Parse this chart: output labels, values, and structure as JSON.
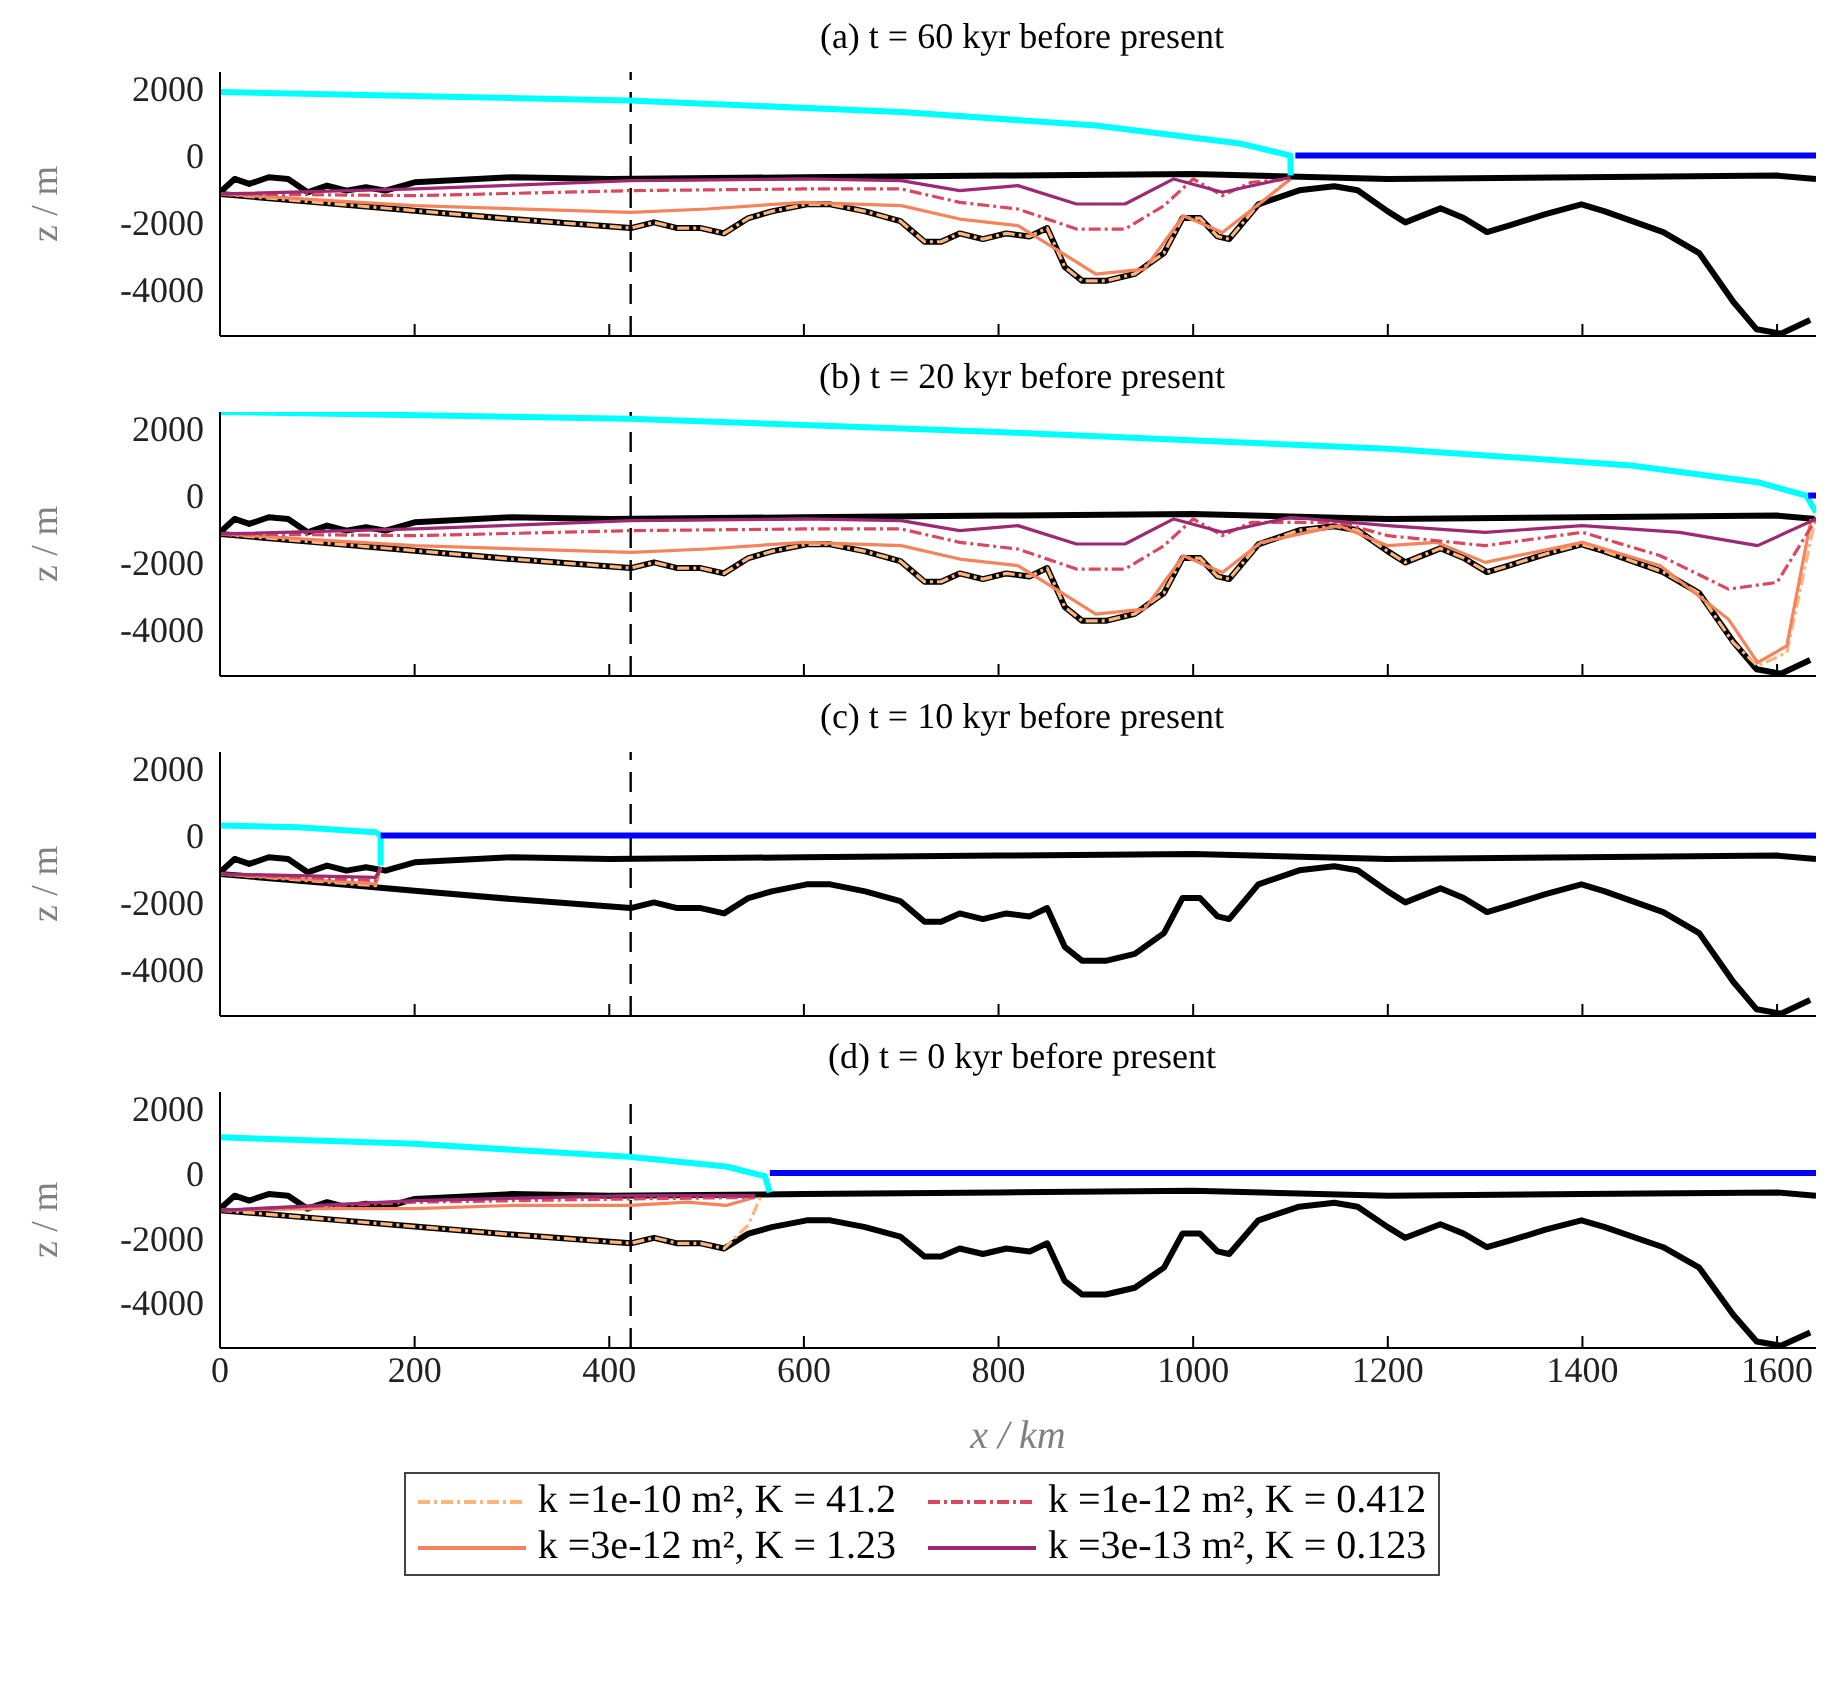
{
  "chart_data": [
    {
      "type": "line",
      "title": "(a) t = 60 kyr before present",
      "ylabel": "z / m",
      "xlim": [
        0,
        1640
      ],
      "xticks": [
        0,
        200,
        400,
        600,
        800,
        1000,
        1200,
        1400,
        1600
      ],
      "ylim": [
        -5400,
        2500
      ],
      "yticks": [
        2000,
        0,
        -2000,
        -4000
      ],
      "tick_labels": "y",
      "ref_lines": [
        {
          "axis": "x",
          "value": 422,
          "color": "#000000",
          "line_style": "dashed"
        }
      ],
      "series": [
        {
          "color": "#fdb57a",
          "line_style": "dashed",
          "x": [
            0,
            100,
            200,
            300,
            422,
            446,
            470,
            494,
            518,
            543,
            567,
            603,
            627,
            663,
            699,
            724,
            741,
            760,
            784,
            808,
            832,
            850,
            868,
            886,
            910,
            940,
            970,
            989,
            1007,
            1025,
            1037,
            1067,
            1100
          ],
          "values": [
            -1150,
            -1400,
            -1650,
            -1900,
            -2170,
            -2000,
            -2170,
            -2170,
            -2330,
            -1870,
            -1670,
            -1460,
            -1460,
            -1670,
            -1960,
            -2580,
            -2580,
            -2330,
            -2500,
            -2330,
            -2420,
            -2170,
            -3330,
            -3750,
            -3750,
            -3540,
            -2920,
            -1870,
            -1870,
            -2420,
            -2500,
            -1460,
            -700
          ]
        },
        {
          "color": "#f4845c",
          "line_style": "solid",
          "x": [
            0,
            200,
            422,
            500,
            600,
            700,
            760,
            820,
            870,
            900,
            950,
            990,
            1030,
            1070,
            1100
          ],
          "values": [
            -1150,
            -1500,
            -1700,
            -1600,
            -1400,
            -1500,
            -1900,
            -2100,
            -3000,
            -3550,
            -3400,
            -1800,
            -2300,
            -1400,
            -700
          ]
        },
        {
          "color": "#d9485f",
          "line_style": "dashed",
          "x": [
            0,
            200,
            422,
            600,
            700,
            760,
            820,
            880,
            930,
            970,
            1000,
            1030,
            1060,
            1100
          ],
          "values": [
            -1150,
            -1200,
            -1050,
            -1000,
            -1000,
            -1400,
            -1600,
            -2200,
            -2200,
            -1500,
            -700,
            -1200,
            -800,
            -700
          ]
        },
        {
          "color": "#9c2a72",
          "line_style": "solid",
          "x": [
            0,
            200,
            422,
            600,
            700,
            760,
            820,
            880,
            930,
            980,
            1030,
            1100
          ],
          "values": [
            -1150,
            -1000,
            -750,
            -700,
            -750,
            -1050,
            -900,
            -1450,
            -1450,
            -700,
            -1100,
            -650
          ]
        },
        {
          "color": "#000000",
          "line_style": "solid",
          "x": [
            0,
            15,
            30,
            50,
            70,
            90,
            110,
            130,
            150,
            170,
            200,
            300,
            400,
            600,
            800,
            1000,
            1200,
            1400,
            1600,
            1640
          ],
          "values": [
            -1100,
            -700,
            -850,
            -650,
            -700,
            -1100,
            -900,
            -1050,
            -950,
            -1050,
            -800,
            -650,
            -700,
            -650,
            -600,
            -550,
            -700,
            -650,
            -600,
            -700
          ]
        },
        {
          "color": "#000000",
          "line_style": "solid",
          "x": [
            0,
            100,
            200,
            300,
            422,
            446,
            470,
            494,
            518,
            543,
            567,
            603,
            627,
            663,
            699,
            724,
            741,
            760,
            784,
            808,
            832,
            850,
            868,
            886,
            910,
            940,
            970,
            989,
            1007,
            1025,
            1037,
            1067,
            1109,
            1145,
            1169,
            1200,
            1218,
            1254,
            1278,
            1302,
            1326,
            1362,
            1399,
            1423,
            1483,
            1520,
            1555,
            1579,
            1604,
            1634
          ],
          "values": [
            -1150,
            -1400,
            -1650,
            -1900,
            -2170,
            -2000,
            -2170,
            -2170,
            -2330,
            -1870,
            -1670,
            -1460,
            -1460,
            -1670,
            -1960,
            -2580,
            -2580,
            -2330,
            -2500,
            -2330,
            -2420,
            -2170,
            -3330,
            -3750,
            -3750,
            -3540,
            -2920,
            -1870,
            -1870,
            -2420,
            -2500,
            -1460,
            -1040,
            -920,
            -1040,
            -1670,
            -2000,
            -1580,
            -1870,
            -2290,
            -2080,
            -1750,
            -1460,
            -1670,
            -2290,
            -2920,
            -4375,
            -5200,
            -5330,
            -4920
          ]
        },
        {
          "color": "#00ffff",
          "line_style": "solid",
          "x": [
            0,
            420,
            700,
            900,
            1050,
            1100,
            1100
          ],
          "values": [
            1900,
            1650,
            1300,
            900,
            350,
            0,
            -600
          ]
        },
        {
          "color": "#0000ff",
          "line_style": "solid",
          "x": [
            1105,
            1640
          ],
          "values": [
            0,
            0
          ]
        }
      ]
    },
    {
      "type": "line",
      "title": "(b) t = 20 kyr before present",
      "ylabel": "z / m",
      "xlim": [
        0,
        1640
      ],
      "xticks": [
        0,
        200,
        400,
        600,
        800,
        1000,
        1200,
        1400,
        1600
      ],
      "ylim": [
        -5400,
        2500
      ],
      "yticks": [
        2000,
        0,
        -2000,
        -4000
      ],
      "tick_labels": "y",
      "ref_lines": [
        {
          "axis": "x",
          "value": 422,
          "color": "#000000",
          "line_style": "dashed"
        }
      ],
      "series": [
        {
          "color": "#fdb57a",
          "line_style": "dashed",
          "x": [
            0,
            100,
            200,
            300,
            422,
            446,
            470,
            494,
            518,
            543,
            567,
            603,
            627,
            663,
            699,
            724,
            741,
            760,
            784,
            808,
            832,
            850,
            868,
            886,
            910,
            940,
            970,
            989,
            1007,
            1025,
            1037,
            1067,
            1109,
            1145,
            1169,
            1200,
            1218,
            1254,
            1278,
            1302,
            1326,
            1362,
            1399,
            1423,
            1483,
            1520,
            1555,
            1580,
            1610,
            1640
          ],
          "values": [
            -1150,
            -1400,
            -1650,
            -1900,
            -2170,
            -2000,
            -2170,
            -2170,
            -2330,
            -1870,
            -1670,
            -1460,
            -1460,
            -1670,
            -1960,
            -2580,
            -2580,
            -2330,
            -2500,
            -2330,
            -2420,
            -2170,
            -3330,
            -3750,
            -3750,
            -3540,
            -2920,
            -1870,
            -1870,
            -2420,
            -2500,
            -1460,
            -1040,
            -920,
            -1040,
            -1670,
            -2000,
            -1580,
            -1870,
            -2290,
            -2080,
            -1750,
            -1460,
            -1670,
            -2290,
            -2920,
            -4400,
            -5100,
            -4700,
            -600
          ]
        },
        {
          "color": "#f4845c",
          "line_style": "solid",
          "x": [
            0,
            200,
            422,
            500,
            600,
            700,
            760,
            820,
            870,
            900,
            950,
            990,
            1030,
            1070,
            1150,
            1200,
            1250,
            1300,
            1400,
            1480,
            1550,
            1580,
            1610,
            1635
          ],
          "values": [
            -1150,
            -1500,
            -1700,
            -1600,
            -1400,
            -1500,
            -1900,
            -2100,
            -3000,
            -3550,
            -3400,
            -1800,
            -2300,
            -1400,
            -900,
            -1500,
            -1400,
            -2000,
            -1400,
            -2100,
            -3700,
            -5000,
            -4500,
            -700
          ]
        },
        {
          "color": "#d9485f",
          "line_style": "dashed",
          "x": [
            0,
            200,
            422,
            600,
            700,
            760,
            820,
            880,
            930,
            970,
            1000,
            1030,
            1060,
            1150,
            1200,
            1300,
            1400,
            1480,
            1550,
            1600,
            1640
          ],
          "values": [
            -1150,
            -1200,
            -1050,
            -1000,
            -1000,
            -1400,
            -1600,
            -2200,
            -2200,
            -1500,
            -700,
            -1200,
            -800,
            -800,
            -1200,
            -1500,
            -1100,
            -1800,
            -2800,
            -2600,
            -700
          ]
        },
        {
          "color": "#9c2a72",
          "line_style": "solid",
          "x": [
            0,
            200,
            422,
            600,
            700,
            760,
            820,
            880,
            930,
            980,
            1030,
            1100,
            1200,
            1300,
            1400,
            1500,
            1580,
            1640
          ],
          "values": [
            -1150,
            -1000,
            -750,
            -700,
            -750,
            -1050,
            -900,
            -1450,
            -1450,
            -700,
            -1100,
            -650,
            -900,
            -1100,
            -900,
            -1100,
            -1500,
            -700
          ]
        },
        {
          "color": "#000000",
          "line_style": "solid",
          "x": [
            0,
            15,
            30,
            50,
            70,
            90,
            110,
            130,
            150,
            170,
            200,
            300,
            400,
            600,
            800,
            1000,
            1200,
            1400,
            1600,
            1640
          ],
          "values": [
            -1100,
            -700,
            -850,
            -650,
            -700,
            -1100,
            -900,
            -1050,
            -950,
            -1050,
            -800,
            -650,
            -700,
            -650,
            -600,
            -550,
            -700,
            -650,
            -600,
            -700
          ]
        },
        {
          "color": "#000000",
          "line_style": "solid",
          "x": [
            0,
            100,
            200,
            300,
            422,
            446,
            470,
            494,
            518,
            543,
            567,
            603,
            627,
            663,
            699,
            724,
            741,
            760,
            784,
            808,
            832,
            850,
            868,
            886,
            910,
            940,
            970,
            989,
            1007,
            1025,
            1037,
            1067,
            1109,
            1145,
            1169,
            1200,
            1218,
            1254,
            1278,
            1302,
            1326,
            1362,
            1399,
            1423,
            1483,
            1520,
            1555,
            1579,
            1604,
            1634
          ],
          "values": [
            -1150,
            -1400,
            -1650,
            -1900,
            -2170,
            -2000,
            -2170,
            -2170,
            -2330,
            -1870,
            -1670,
            -1460,
            -1460,
            -1670,
            -1960,
            -2580,
            -2580,
            -2330,
            -2500,
            -2330,
            -2420,
            -2170,
            -3330,
            -3750,
            -3750,
            -3540,
            -2920,
            -1870,
            -1870,
            -2420,
            -2500,
            -1460,
            -1040,
            -920,
            -1040,
            -1670,
            -2000,
            -1580,
            -1870,
            -2290,
            -2080,
            -1750,
            -1460,
            -1670,
            -2290,
            -2920,
            -4375,
            -5200,
            -5330,
            -4920
          ]
        },
        {
          "color": "#00ffff",
          "line_style": "solid",
          "x": [
            0,
            420,
            800,
            1200,
            1450,
            1580,
            1630,
            1640
          ],
          "values": [
            2500,
            2300,
            1900,
            1400,
            900,
            400,
            0,
            -500
          ]
        },
        {
          "color": "#0000ff",
          "line_style": "solid",
          "x": [
            1632,
            1640
          ],
          "values": [
            0,
            0
          ]
        }
      ]
    },
    {
      "type": "line",
      "title": "(c) t = 10 kyr before present",
      "ylabel": "z / m",
      "xlim": [
        0,
        1640
      ],
      "xticks": [
        0,
        200,
        400,
        600,
        800,
        1000,
        1200,
        1400,
        1600
      ],
      "ylim": [
        -5400,
        2500
      ],
      "yticks": [
        2000,
        0,
        -2000,
        -4000
      ],
      "tick_labels": "y",
      "ref_lines": [
        {
          "axis": "x",
          "value": 422,
          "color": "#000000",
          "line_style": "dashed"
        }
      ],
      "series": [
        {
          "color": "#fdb57a",
          "line_style": "dashed",
          "x": [
            0,
            160,
            165
          ],
          "values": [
            -1150,
            -1500,
            -950
          ]
        },
        {
          "color": "#f4845c",
          "line_style": "solid",
          "x": [
            0,
            160,
            165
          ],
          "values": [
            -1150,
            -1450,
            -950
          ]
        },
        {
          "color": "#d9485f",
          "line_style": "dashed",
          "x": [
            0,
            160,
            165
          ],
          "values": [
            -1150,
            -1350,
            -950
          ]
        },
        {
          "color": "#9c2a72",
          "line_style": "solid",
          "x": [
            0,
            160,
            165
          ],
          "values": [
            -1150,
            -1250,
            -950
          ]
        },
        {
          "color": "#000000",
          "line_style": "solid",
          "x": [
            0,
            15,
            30,
            50,
            70,
            90,
            110,
            130,
            150,
            170,
            200,
            300,
            400,
            600,
            800,
            1000,
            1200,
            1400,
            1600,
            1640
          ],
          "values": [
            -1100,
            -700,
            -850,
            -650,
            -700,
            -1100,
            -900,
            -1050,
            -950,
            -1050,
            -800,
            -650,
            -700,
            -650,
            -600,
            -550,
            -700,
            -650,
            -600,
            -700
          ]
        },
        {
          "color": "#000000",
          "line_style": "solid",
          "x": [
            0,
            100,
            200,
            300,
            422,
            446,
            470,
            494,
            518,
            543,
            567,
            603,
            627,
            663,
            699,
            724,
            741,
            760,
            784,
            808,
            832,
            850,
            868,
            886,
            910,
            940,
            970,
            989,
            1007,
            1025,
            1037,
            1067,
            1109,
            1145,
            1169,
            1200,
            1218,
            1254,
            1278,
            1302,
            1326,
            1362,
            1399,
            1423,
            1483,
            1520,
            1555,
            1579,
            1604,
            1634
          ],
          "values": [
            -1150,
            -1400,
            -1650,
            -1900,
            -2170,
            -2000,
            -2170,
            -2170,
            -2330,
            -1870,
            -1670,
            -1460,
            -1460,
            -1670,
            -1960,
            -2580,
            -2580,
            -2330,
            -2500,
            -2330,
            -2420,
            -2170,
            -3330,
            -3750,
            -3750,
            -3540,
            -2920,
            -1870,
            -1870,
            -2420,
            -2500,
            -1460,
            -1040,
            -920,
            -1040,
            -1670,
            -2000,
            -1580,
            -1870,
            -2290,
            -2080,
            -1750,
            -1460,
            -1670,
            -2290,
            -2920,
            -4375,
            -5200,
            -5330,
            -4920
          ]
        },
        {
          "color": "#00ffff",
          "line_style": "solid",
          "x": [
            0,
            80,
            160,
            165,
            165
          ],
          "values": [
            300,
            250,
            100,
            0,
            -900
          ]
        },
        {
          "color": "#0000ff",
          "line_style": "solid",
          "x": [
            165,
            1640
          ],
          "values": [
            0,
            0
          ]
        }
      ]
    },
    {
      "type": "line",
      "title": "(d) t = 0 kyr before present",
      "xlabel": "x / km",
      "ylabel": "z / m",
      "xlim": [
        0,
        1640
      ],
      "xticks": [
        0,
        200,
        400,
        600,
        800,
        1000,
        1200,
        1400,
        1600
      ],
      "ylim": [
        -5400,
        2500
      ],
      "yticks": [
        2000,
        0,
        -2000,
        -4000
      ],
      "legend": "bottom",
      "ref_lines": [
        {
          "axis": "x",
          "value": 422,
          "color": "#000000",
          "line_style": "dashed"
        }
      ],
      "series": [
        {
          "name": "k =1e-10 m², K = 41.2",
          "color": "#fdb57a",
          "line_style": "dashed",
          "x": [
            0,
            100,
            200,
            300,
            422,
            446,
            470,
            494,
            518,
            543,
            556
          ],
          "values": [
            -1150,
            -1400,
            -1650,
            -1900,
            -2170,
            -2000,
            -2170,
            -2170,
            -2330,
            -1600,
            -700
          ]
        },
        {
          "name": "k =3e-12 m², K = 1.23",
          "color": "#f4845c",
          "line_style": "solid",
          "x": [
            0,
            100,
            200,
            300,
            422,
            480,
            520,
            550
          ],
          "values": [
            -1150,
            -1100,
            -1100,
            -1000,
            -1000,
            -900,
            -1000,
            -750
          ]
        },
        {
          "name": "k =1e-12 m², K = 0.412",
          "color": "#d9485f",
          "line_style": "dashed",
          "x": [
            0,
            200,
            422,
            550
          ],
          "values": [
            -1150,
            -900,
            -800,
            -750
          ]
        },
        {
          "name": "k =3e-13 m², K = 0.123",
          "color": "#9c2a72",
          "line_style": "solid",
          "x": [
            0,
            200,
            422,
            550
          ],
          "values": [
            -1150,
            -850,
            -700,
            -700
          ]
        },
        {
          "color": "#000000",
          "line_style": "solid",
          "x": [
            0,
            15,
            30,
            50,
            70,
            90,
            110,
            130,
            150,
            170,
            200,
            300,
            400,
            600,
            800,
            1000,
            1200,
            1400,
            1600,
            1640
          ],
          "values": [
            -1100,
            -700,
            -850,
            -650,
            -700,
            -1100,
            -900,
            -1050,
            -950,
            -1050,
            -800,
            -650,
            -700,
            -650,
            -600,
            -550,
            -700,
            -650,
            -600,
            -700
          ]
        },
        {
          "color": "#000000",
          "line_style": "solid",
          "x": [
            0,
            100,
            200,
            300,
            422,
            446,
            470,
            494,
            518,
            543,
            567,
            603,
            627,
            663,
            699,
            724,
            741,
            760,
            784,
            808,
            832,
            850,
            868,
            886,
            910,
            940,
            970,
            989,
            1007,
            1025,
            1037,
            1067,
            1109,
            1145,
            1169,
            1200,
            1218,
            1254,
            1278,
            1302,
            1326,
            1362,
            1399,
            1423,
            1483,
            1520,
            1555,
            1579,
            1604,
            1634
          ],
          "values": [
            -1150,
            -1400,
            -1650,
            -1900,
            -2170,
            -2000,
            -2170,
            -2170,
            -2330,
            -1870,
            -1670,
            -1460,
            -1460,
            -1670,
            -1960,
            -2580,
            -2580,
            -2330,
            -2500,
            -2330,
            -2420,
            -2170,
            -3330,
            -3750,
            -3750,
            -3540,
            -2920,
            -1870,
            -1870,
            -2420,
            -2500,
            -1460,
            -1040,
            -920,
            -1040,
            -1670,
            -2000,
            -1580,
            -1870,
            -2290,
            -2080,
            -1750,
            -1460,
            -1670,
            -2290,
            -2920,
            -4375,
            -5200,
            -5330,
            -4920
          ]
        },
        {
          "color": "#00ffff",
          "line_style": "solid",
          "x": [
            0,
            200,
            420,
            520,
            560,
            565
          ],
          "values": [
            1100,
            900,
            500,
            200,
            -100,
            -600
          ]
        },
        {
          "color": "#0000ff",
          "line_style": "solid",
          "x": [
            565,
            1640
          ],
          "values": [
            0,
            0
          ]
        }
      ]
    }
  ]
}
